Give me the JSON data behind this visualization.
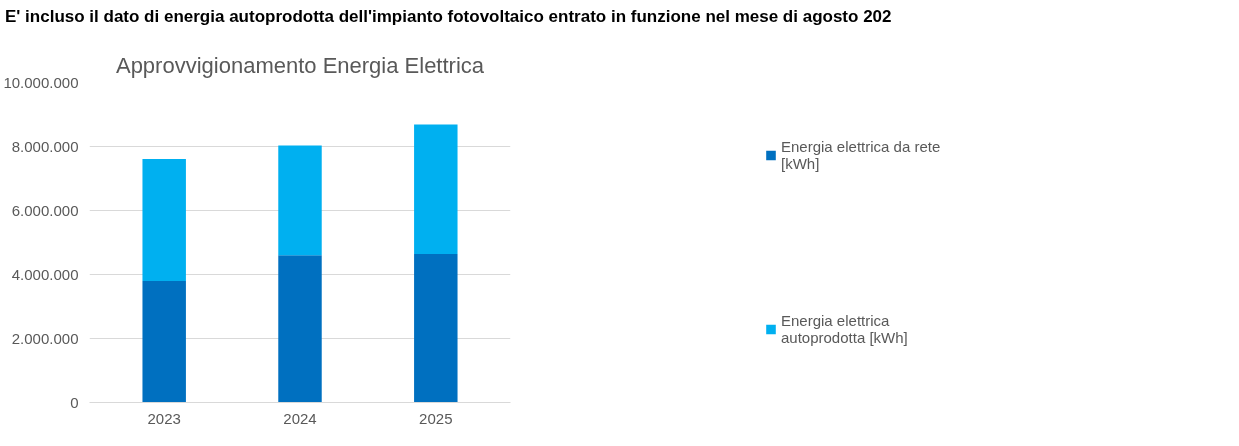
{
  "chart_data": {
    "type": "bar",
    "title": "Approvvigionamento Energia Elettrica",
    "annotations": [
      "E' incluso il dato di energia autoprodotta dell'impianto fotovoltaico entrato in funzione nel mese di agosto 202"
    ],
    "categories": [
      "2023",
      "2024",
      "2025"
    ],
    "stacked": true,
    "series": [
      {
        "name": "Energia elettrica da rete [kWh]",
        "color": "#0070c0",
        "values": [
          3800000,
          4600000,
          4640000
        ]
      },
      {
        "name": "Energia elettrica autoprodotta [kWh]",
        "color": "#00b0f0",
        "values": [
          3810000,
          3430000,
          4050000
        ]
      }
    ],
    "ylim": [
      0,
      10000000
    ],
    "yticks": [
      {
        "value": 0,
        "label": "0"
      },
      {
        "value": 2000000,
        "label": "2.000.000"
      },
      {
        "value": 4000000,
        "label": "4.000.000"
      },
      {
        "value": 6000000,
        "label": "6.000.000"
      },
      {
        "value": 8000000,
        "label": "8.000.000"
      },
      {
        "value": 10000000,
        "label": "10.000.000"
      }
    ],
    "grid": "y",
    "legend": "right"
  }
}
